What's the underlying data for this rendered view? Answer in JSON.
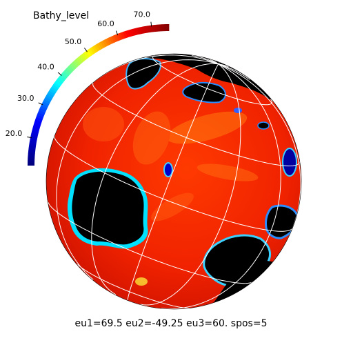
{
  "map": {
    "variable_name": "Bathy_level",
    "caption": "eu1=69.5 eu2=-49.25 eu3=60. spos=5",
    "colorbar": {
      "ticks": [
        "20.0",
        "30.0",
        "40.0",
        "50.0",
        "60.0",
        "70.0"
      ],
      "tick_values": [
        20,
        30,
        40,
        50,
        60,
        70
      ],
      "range": [
        12,
        75
      ],
      "colormap": [
        "#00007f",
        "#0000ff",
        "#00ffff",
        "#ffff00",
        "#ff0000",
        "#7f0000"
      ]
    },
    "colors": {
      "ocean_dominant": "#ff3300",
      "land": "#000000",
      "grid": "#ffffff"
    }
  }
}
